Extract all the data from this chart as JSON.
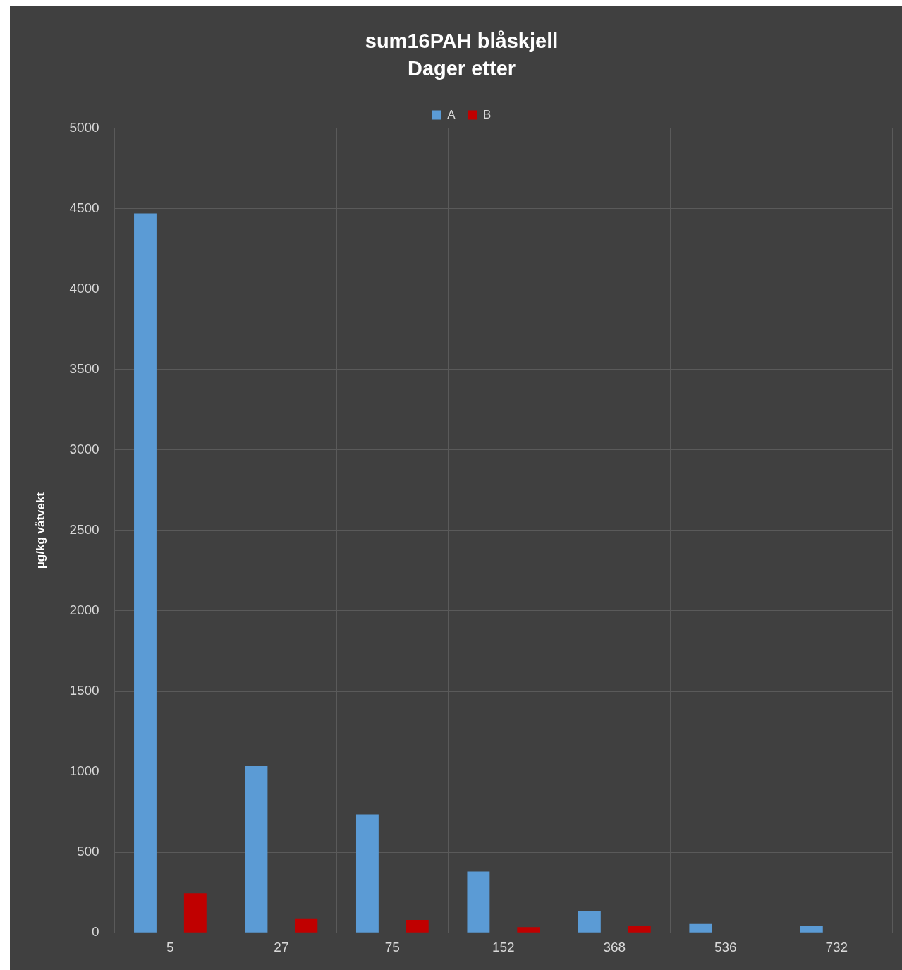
{
  "chart_data": {
    "type": "bar",
    "title": "sum16PAH blåskjell",
    "subtitle": "Dager etter",
    "ylabel": "µg/kg våtvekt",
    "categories": [
      "5",
      "27",
      "75",
      "152",
      "368",
      "536",
      "732"
    ],
    "series": [
      {
        "name": "A",
        "color": "#5b9bd5",
        "values": [
          4470,
          1035,
          735,
          380,
          135,
          55,
          40
        ]
      },
      {
        "name": "B",
        "color": "#c00000",
        "values": [
          245,
          90,
          80,
          35,
          40,
          null,
          null
        ]
      }
    ],
    "ylim": [
      0,
      5000
    ],
    "yticks": [
      0,
      500,
      1000,
      1500,
      2000,
      2500,
      3000,
      3500,
      4000,
      4500,
      5000
    ],
    "grid": true,
    "legend": "top"
  }
}
